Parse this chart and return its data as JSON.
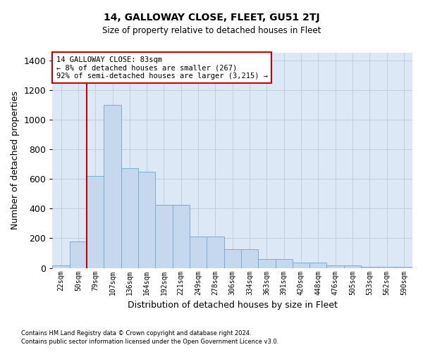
{
  "title": "14, GALLOWAY CLOSE, FLEET, GU51 2TJ",
  "subtitle": "Size of property relative to detached houses in Fleet",
  "xlabel": "Distribution of detached houses by size in Fleet",
  "ylabel": "Number of detached properties",
  "categories": [
    "22sqm",
    "50sqm",
    "79sqm",
    "107sqm",
    "136sqm",
    "164sqm",
    "192sqm",
    "221sqm",
    "249sqm",
    "278sqm",
    "306sqm",
    "334sqm",
    "363sqm",
    "391sqm",
    "420sqm",
    "448sqm",
    "476sqm",
    "505sqm",
    "533sqm",
    "562sqm",
    "590sqm"
  ],
  "bar_heights": [
    18,
    178,
    620,
    1100,
    670,
    650,
    425,
    425,
    210,
    210,
    125,
    125,
    60,
    60,
    35,
    35,
    18,
    18,
    10,
    10,
    10
  ],
  "bar_color": "#c5d8ee",
  "bar_edge_color": "#7aadd4",
  "grid_color": "#c0cfe0",
  "background_color": "#dce8f5",
  "vline_x": 1.5,
  "vline_color": "#cc0000",
  "annotation_text": "14 GALLOWAY CLOSE: 83sqm\n← 8% of detached houses are smaller (267)\n92% of semi-detached houses are larger (3,215) →",
  "annotation_box_color": "#ffffff",
  "annotation_box_edge": "#cc0000",
  "ylim": [
    0,
    1450
  ],
  "yticks": [
    0,
    200,
    400,
    600,
    800,
    1000,
    1200,
    1400
  ],
  "footer1": "Contains HM Land Registry data © Crown copyright and database right 2024.",
  "footer2": "Contains public sector information licensed under the Open Government Licence v3.0.",
  "fig_width": 6.0,
  "fig_height": 5.0,
  "dpi": 100
}
